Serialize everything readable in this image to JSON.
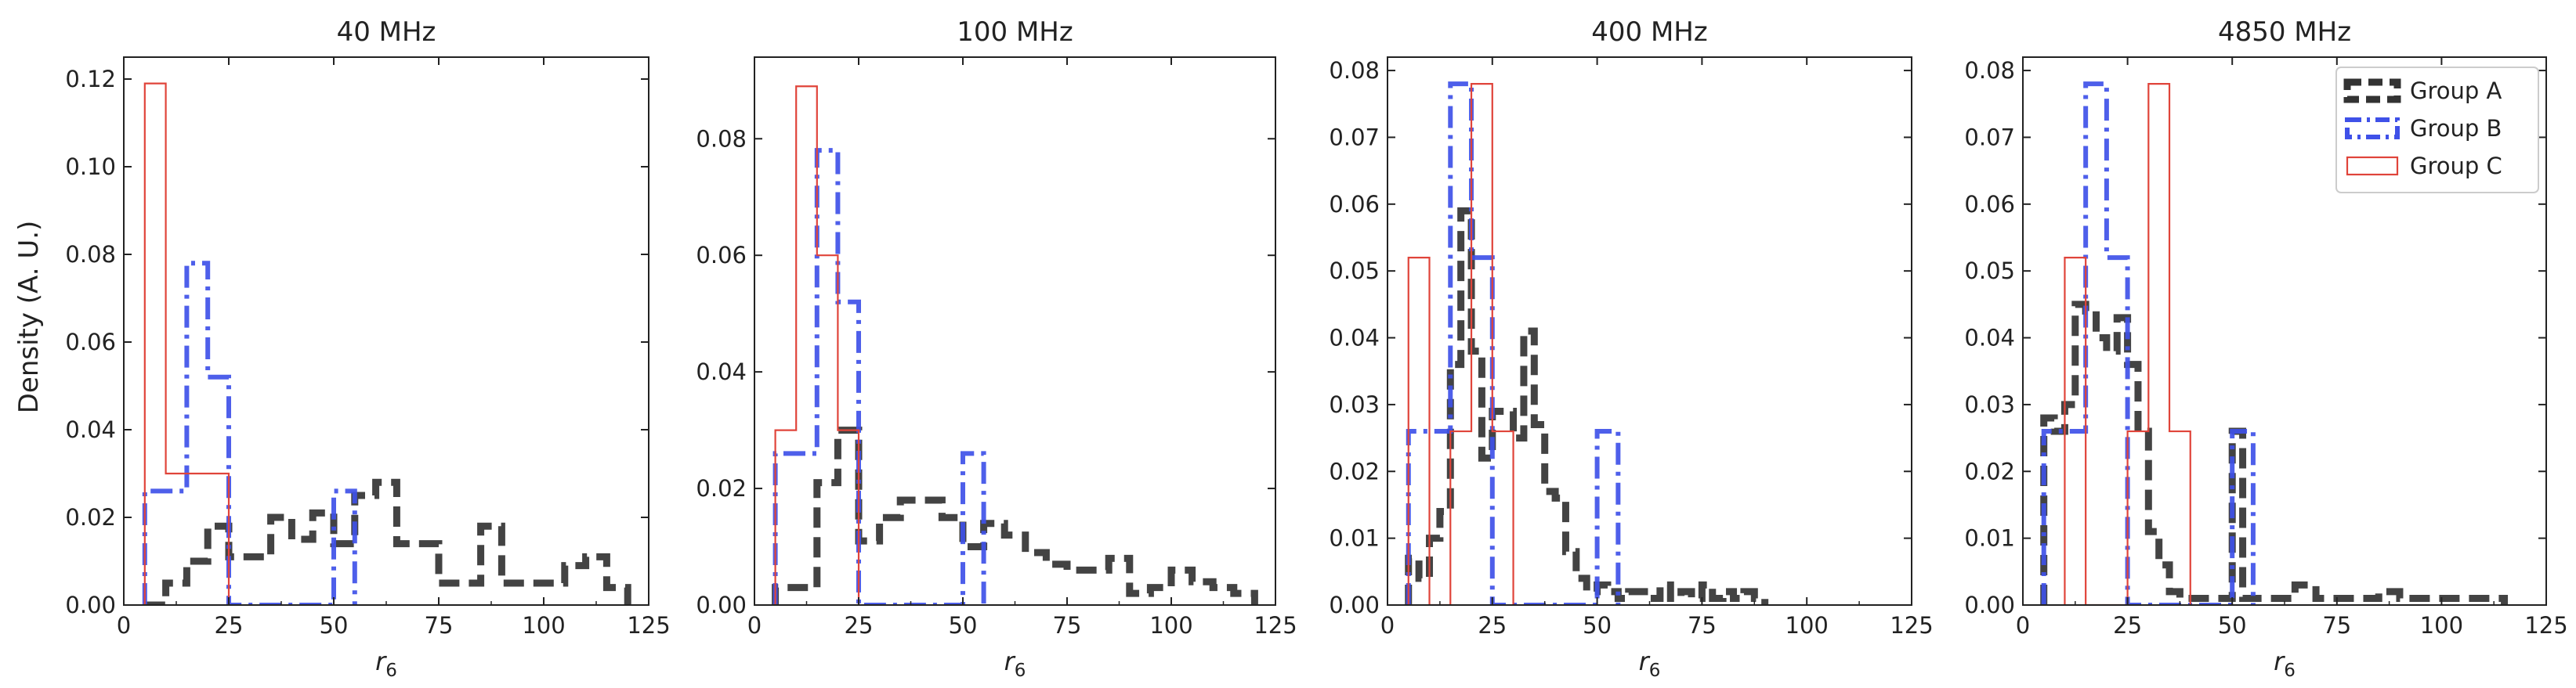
{
  "figure": {
    "ylabel": "Density (A. U.)",
    "legend": {
      "placement": "top-right of last panel",
      "entries": [
        "Group A",
        "Group B",
        "Group C"
      ]
    }
  },
  "series_styles": {
    "Group A": {
      "color": "#333333",
      "linestyle": "dashed"
    },
    "Group B": {
      "color": "#3f51e8",
      "linestyle": "dashdot"
    },
    "Group C": {
      "color": "#e0443a",
      "linestyle": "solid"
    }
  },
  "chart_data": [
    {
      "type": "step-histogram",
      "title": "40 MHz",
      "xlabel": "r",
      "xlabel_sub": "6",
      "ylabel": "Density (A. U.)",
      "xlim": [
        0,
        125
      ],
      "ylim": [
        0,
        0.125
      ],
      "xticks": [
        0,
        25,
        50,
        75,
        100,
        125
      ],
      "yticks": [
        0.0,
        0.02,
        0.04,
        0.06,
        0.08,
        0.1,
        0.12
      ],
      "ytick_labels": [
        "0.00",
        "0.02",
        "0.04",
        "0.06",
        "0.08",
        "0.10",
        "0.12"
      ],
      "series": [
        {
          "name": "Group A",
          "edges": [
            5,
            10,
            15,
            20,
            25,
            30,
            35,
            40,
            45,
            50,
            55,
            60,
            65,
            70,
            75,
            80,
            85,
            90,
            95,
            100,
            105,
            110,
            115,
            120
          ],
          "values": [
            0,
            0.005,
            0.01,
            0.018,
            0.011,
            0.011,
            0.02,
            0.015,
            0.021,
            0.014,
            0.025,
            0.028,
            0.014,
            0.014,
            0.005,
            0.005,
            0.018,
            0.005,
            0.005,
            0.005,
            0.009,
            0.011,
            0.004
          ]
        },
        {
          "name": "Group B",
          "edges": [
            5,
            15,
            20,
            25,
            50,
            55
          ],
          "values": [
            0.026,
            0.078,
            0.052,
            0,
            0.026
          ]
        },
        {
          "name": "Group C",
          "edges": [
            5,
            10,
            25
          ],
          "values": [
            0.119,
            0.03
          ]
        }
      ]
    },
    {
      "type": "step-histogram",
      "title": "100 MHz",
      "xlabel": "r",
      "xlabel_sub": "6",
      "ylabel": "",
      "xlim": [
        0,
        125
      ],
      "ylim": [
        0,
        0.094
      ],
      "xticks": [
        0,
        25,
        50,
        75,
        100,
        125
      ],
      "yticks": [
        0.0,
        0.02,
        0.04,
        0.06,
        0.08
      ],
      "ytick_labels": [
        "0.00",
        "0.02",
        "0.04",
        "0.06",
        "0.08"
      ],
      "series": [
        {
          "name": "Group A",
          "edges": [
            5,
            10,
            15,
            20,
            25,
            30,
            35,
            40,
            45,
            50,
            55,
            60,
            65,
            70,
            75,
            80,
            85,
            90,
            95,
            100,
            105,
            110,
            115,
            120
          ],
          "values": [
            0.003,
            0.003,
            0.021,
            0.03,
            0.011,
            0.015,
            0.018,
            0.018,
            0.015,
            0.01,
            0.014,
            0.012,
            0.009,
            0.007,
            0.006,
            0.006,
            0.008,
            0.002,
            0.003,
            0.006,
            0.004,
            0.003,
            0.002
          ]
        },
        {
          "name": "Group B",
          "edges": [
            5,
            10,
            15,
            20,
            25,
            50,
            55
          ],
          "values": [
            0.026,
            0.026,
            0.078,
            0.052,
            0,
            0.026
          ]
        },
        {
          "name": "Group C",
          "edges": [
            5,
            10,
            15,
            20,
            25
          ],
          "values": [
            0.03,
            0.089,
            0.06,
            0.03
          ]
        }
      ]
    },
    {
      "type": "step-histogram",
      "title": "400 MHz",
      "xlabel": "r",
      "xlabel_sub": "6",
      "ylabel": "",
      "xlim": [
        0,
        125
      ],
      "ylim": [
        0,
        0.082
      ],
      "xticks": [
        0,
        25,
        50,
        75,
        100,
        125
      ],
      "yticks": [
        0.0,
        0.01,
        0.02,
        0.03,
        0.04,
        0.05,
        0.06,
        0.07,
        0.08
      ],
      "ytick_labels": [
        "0.00",
        "0.01",
        "0.02",
        "0.03",
        "0.04",
        "0.05",
        "0.06",
        "0.07",
        "0.08"
      ],
      "series": [
        {
          "name": "Group A",
          "edges": [
            5,
            7.5,
            10,
            12.5,
            15,
            17.5,
            20,
            22.5,
            25,
            27.5,
            30,
            32.5,
            35,
            37.5,
            40,
            42.5,
            45,
            47.5,
            50,
            52.5,
            55,
            57.5,
            60,
            62.5,
            65,
            67.5,
            70,
            72.5,
            75,
            77.5,
            80,
            82.5,
            85,
            87.5,
            90
          ],
          "values": [
            0.007,
            0.004,
            0.01,
            0.014,
            0.036,
            0.059,
            0.038,
            0.022,
            0.029,
            0.029,
            0.025,
            0.041,
            0.027,
            0.017,
            0.016,
            0.008,
            0.004,
            0.002,
            0.003,
            0.002,
            0.001,
            0.002,
            0.002,
            0.001,
            0.003,
            0.001,
            0.002,
            0.001,
            0.003,
            0.001,
            0.002,
            0.001,
            0.002,
            0.001
          ]
        },
        {
          "name": "Group B",
          "edges": [
            5,
            15,
            20,
            25,
            50,
            55
          ],
          "values": [
            0.026,
            0.078,
            0.052,
            0,
            0.026
          ]
        },
        {
          "name": "Group C",
          "edges": [
            5,
            10,
            15,
            20,
            25,
            30
          ],
          "values": [
            0.052,
            0,
            0.026,
            0.078,
            0.026
          ]
        }
      ]
    },
    {
      "type": "step-histogram",
      "title": "4850 MHz",
      "xlabel": "r",
      "xlabel_sub": "6",
      "ylabel": "",
      "xlim": [
        0,
        125
      ],
      "ylim": [
        0,
        0.082
      ],
      "xticks": [
        0,
        25,
        50,
        75,
        100,
        125
      ],
      "yticks": [
        0.0,
        0.01,
        0.02,
        0.03,
        0.04,
        0.05,
        0.06,
        0.07,
        0.08
      ],
      "ytick_labels": [
        "0.00",
        "0.01",
        "0.02",
        "0.03",
        "0.04",
        "0.05",
        "0.06",
        "0.07",
        "0.08"
      ],
      "series": [
        {
          "name": "Group A",
          "edges": [
            5,
            7.5,
            10,
            12.5,
            15,
            17.5,
            20,
            22.5,
            25,
            27.5,
            30,
            32.5,
            35,
            37.5,
            40,
            42.5,
            45,
            47.5,
            50,
            52.5,
            55,
            60,
            65,
            70,
            75,
            80,
            85,
            90,
            95,
            100,
            105,
            110,
            115
          ],
          "values": [
            0.028,
            0.026,
            0.03,
            0.045,
            0.044,
            0.04,
            0.038,
            0.043,
            0.036,
            0.026,
            0.011,
            0.006,
            0.002,
            0.001,
            0.001,
            0.001,
            0.001,
            0.001,
            0.026,
            0.001,
            0.001,
            0.001,
            0.003,
            0.001,
            0.001,
            0.001,
            0.002,
            0.001,
            0.001,
            0.001,
            0.001,
            0.001
          ]
        },
        {
          "name": "Group B",
          "edges": [
            5,
            10,
            15,
            20,
            25,
            50,
            55
          ],
          "values": [
            0.026,
            0.026,
            0.078,
            0.052,
            0,
            0.026
          ]
        },
        {
          "name": "Group C",
          "edges": [
            10,
            15,
            20,
            25,
            30,
            35,
            40
          ],
          "values": [
            0.052,
            0,
            0,
            0.026,
            0.078,
            0.026
          ]
        }
      ]
    }
  ]
}
